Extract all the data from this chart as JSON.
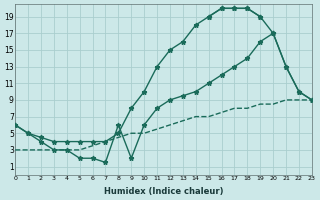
{
  "xlabel": "Humidex (Indice chaleur)",
  "bg_color": "#cce8e8",
  "grid_color": "#aacece",
  "line_color": "#1a6b5a",
  "xlim": [
    0,
    23
  ],
  "ylim": [
    0,
    20.5
  ],
  "xticks": [
    0,
    1,
    2,
    3,
    4,
    5,
    6,
    7,
    8,
    9,
    10,
    11,
    12,
    13,
    14,
    15,
    16,
    17,
    18,
    19,
    20,
    21,
    22,
    23
  ],
  "yticks": [
    1,
    3,
    5,
    7,
    9,
    11,
    13,
    15,
    17,
    19
  ],
  "curve_upper_x": [
    0,
    1,
    2,
    3,
    4,
    5,
    6,
    7,
    8,
    9,
    10,
    11,
    12,
    13,
    14,
    15,
    16,
    17,
    18,
    19,
    20,
    21,
    22,
    23
  ],
  "curve_upper_y": [
    6,
    5,
    4.5,
    4,
    4,
    4,
    4,
    4,
    5,
    8,
    10,
    13,
    15,
    16,
    18,
    19,
    20,
    20,
    20,
    19,
    null,
    null,
    null,
    null
  ],
  "curve_mid_x": [
    0,
    1,
    2,
    3,
    4,
    5,
    6,
    7,
    8,
    9,
    10,
    11,
    12,
    13,
    14,
    15,
    16,
    17,
    18,
    19,
    20,
    21,
    22,
    23
  ],
  "curve_mid_y": [
    null,
    null,
    null,
    null,
    null,
    null,
    null,
    null,
    null,
    null,
    null,
    null,
    null,
    null,
    null,
    19,
    20,
    20,
    20,
    19,
    17,
    13,
    10,
    9
  ],
  "curve_lower_x": [
    0,
    1,
    2,
    3,
    4,
    5,
    6,
    7,
    8,
    9,
    10,
    11,
    12,
    13,
    14,
    15,
    16,
    17,
    18,
    19,
    20,
    21,
    22,
    23
  ],
  "curve_lower_y": [
    6,
    5,
    4,
    3,
    3,
    2,
    2,
    1.5,
    6,
    2,
    6,
    8,
    9,
    9.5,
    10,
    11,
    12,
    13,
    14,
    16,
    17,
    13,
    10,
    9
  ],
  "curve_base_x": [
    0,
    1,
    2,
    3,
    4,
    5,
    6,
    7,
    8,
    9,
    10,
    11,
    12,
    13,
    14,
    15,
    16,
    17,
    18,
    19,
    20,
    21,
    22,
    23
  ],
  "curve_base_y": [
    3,
    3,
    3,
    3,
    3,
    3,
    3.5,
    4,
    4.5,
    5,
    5,
    5.5,
    6,
    6.5,
    7,
    7,
    7.5,
    8,
    8,
    8.5,
    8.5,
    9,
    9,
    9
  ]
}
